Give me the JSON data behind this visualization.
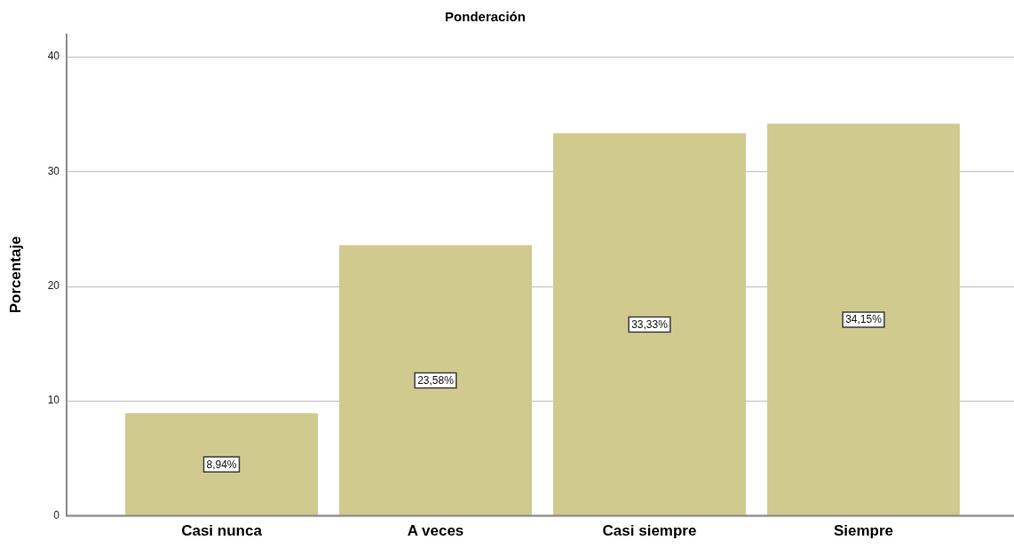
{
  "chart_data": {
    "type": "bar",
    "title": "Ponderación",
    "ylabel": "Porcentaje",
    "categories": [
      "Casi nunca",
      "A veces",
      "Casi siempre",
      "Siempre"
    ],
    "values": [
      8.94,
      23.58,
      33.33,
      34.15
    ],
    "value_labels": [
      "8,94%",
      "23,58%",
      "33,33%",
      "34,15%"
    ],
    "color": "#d0ca8f",
    "ylim": [
      0,
      42
    ],
    "yticks": [
      0,
      10,
      20,
      30,
      40
    ],
    "grid": "y"
  }
}
